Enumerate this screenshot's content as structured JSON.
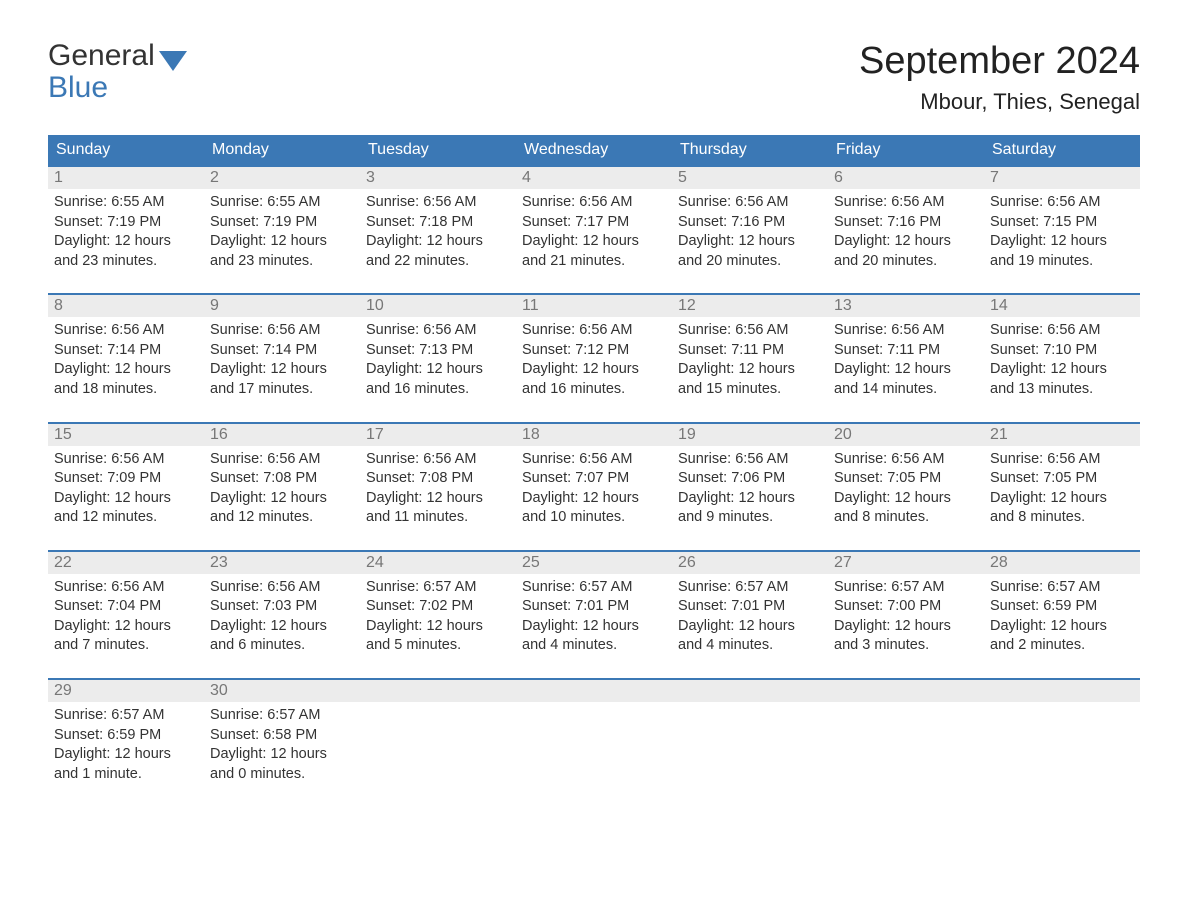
{
  "logo": {
    "line1": "General",
    "line2": "Blue"
  },
  "colors": {
    "brand_blue": "#3b78b5",
    "header_text": "#ffffff",
    "daynum_bg": "#ececec",
    "daynum_fg": "#777777",
    "body_text": "#333333",
    "background": "#ffffff"
  },
  "typography": {
    "title_fontsize": 38,
    "location_fontsize": 22,
    "header_fontsize": 16,
    "body_fontsize": 14.5,
    "logo_fontsize": 30
  },
  "header": {
    "month_title": "September 2024",
    "location": "Mbour, Thies, Senegal"
  },
  "weekdays": [
    "Sunday",
    "Monday",
    "Tuesday",
    "Wednesday",
    "Thursday",
    "Friday",
    "Saturday"
  ],
  "labels": {
    "sunrise": "Sunrise:",
    "sunset": "Sunset:",
    "daylight": "Daylight:"
  },
  "days": [
    {
      "n": 1,
      "sunrise": "6:55 AM",
      "sunset": "7:19 PM",
      "daylight": "12 hours and 23 minutes."
    },
    {
      "n": 2,
      "sunrise": "6:55 AM",
      "sunset": "7:19 PM",
      "daylight": "12 hours and 23 minutes."
    },
    {
      "n": 3,
      "sunrise": "6:56 AM",
      "sunset": "7:18 PM",
      "daylight": "12 hours and 22 minutes."
    },
    {
      "n": 4,
      "sunrise": "6:56 AM",
      "sunset": "7:17 PM",
      "daylight": "12 hours and 21 minutes."
    },
    {
      "n": 5,
      "sunrise": "6:56 AM",
      "sunset": "7:16 PM",
      "daylight": "12 hours and 20 minutes."
    },
    {
      "n": 6,
      "sunrise": "6:56 AM",
      "sunset": "7:16 PM",
      "daylight": "12 hours and 20 minutes."
    },
    {
      "n": 7,
      "sunrise": "6:56 AM",
      "sunset": "7:15 PM",
      "daylight": "12 hours and 19 minutes."
    },
    {
      "n": 8,
      "sunrise": "6:56 AM",
      "sunset": "7:14 PM",
      "daylight": "12 hours and 18 minutes."
    },
    {
      "n": 9,
      "sunrise": "6:56 AM",
      "sunset": "7:14 PM",
      "daylight": "12 hours and 17 minutes."
    },
    {
      "n": 10,
      "sunrise": "6:56 AM",
      "sunset": "7:13 PM",
      "daylight": "12 hours and 16 minutes."
    },
    {
      "n": 11,
      "sunrise": "6:56 AM",
      "sunset": "7:12 PM",
      "daylight": "12 hours and 16 minutes."
    },
    {
      "n": 12,
      "sunrise": "6:56 AM",
      "sunset": "7:11 PM",
      "daylight": "12 hours and 15 minutes."
    },
    {
      "n": 13,
      "sunrise": "6:56 AM",
      "sunset": "7:11 PM",
      "daylight": "12 hours and 14 minutes."
    },
    {
      "n": 14,
      "sunrise": "6:56 AM",
      "sunset": "7:10 PM",
      "daylight": "12 hours and 13 minutes."
    },
    {
      "n": 15,
      "sunrise": "6:56 AM",
      "sunset": "7:09 PM",
      "daylight": "12 hours and 12 minutes."
    },
    {
      "n": 16,
      "sunrise": "6:56 AM",
      "sunset": "7:08 PM",
      "daylight": "12 hours and 12 minutes."
    },
    {
      "n": 17,
      "sunrise": "6:56 AM",
      "sunset": "7:08 PM",
      "daylight": "12 hours and 11 minutes."
    },
    {
      "n": 18,
      "sunrise": "6:56 AM",
      "sunset": "7:07 PM",
      "daylight": "12 hours and 10 minutes."
    },
    {
      "n": 19,
      "sunrise": "6:56 AM",
      "sunset": "7:06 PM",
      "daylight": "12 hours and 9 minutes."
    },
    {
      "n": 20,
      "sunrise": "6:56 AM",
      "sunset": "7:05 PM",
      "daylight": "12 hours and 8 minutes."
    },
    {
      "n": 21,
      "sunrise": "6:56 AM",
      "sunset": "7:05 PM",
      "daylight": "12 hours and 8 minutes."
    },
    {
      "n": 22,
      "sunrise": "6:56 AM",
      "sunset": "7:04 PM",
      "daylight": "12 hours and 7 minutes."
    },
    {
      "n": 23,
      "sunrise": "6:56 AM",
      "sunset": "7:03 PM",
      "daylight": "12 hours and 6 minutes."
    },
    {
      "n": 24,
      "sunrise": "6:57 AM",
      "sunset": "7:02 PM",
      "daylight": "12 hours and 5 minutes."
    },
    {
      "n": 25,
      "sunrise": "6:57 AM",
      "sunset": "7:01 PM",
      "daylight": "12 hours and 4 minutes."
    },
    {
      "n": 26,
      "sunrise": "6:57 AM",
      "sunset": "7:01 PM",
      "daylight": "12 hours and 4 minutes."
    },
    {
      "n": 27,
      "sunrise": "6:57 AM",
      "sunset": "7:00 PM",
      "daylight": "12 hours and 3 minutes."
    },
    {
      "n": 28,
      "sunrise": "6:57 AM",
      "sunset": "6:59 PM",
      "daylight": "12 hours and 2 minutes."
    },
    {
      "n": 29,
      "sunrise": "6:57 AM",
      "sunset": "6:59 PM",
      "daylight": "12 hours and 1 minute."
    },
    {
      "n": 30,
      "sunrise": "6:57 AM",
      "sunset": "6:58 PM",
      "daylight": "12 hours and 0 minutes."
    }
  ],
  "calendar": {
    "first_weekday_index": 0,
    "rows": 5,
    "cols": 7
  }
}
